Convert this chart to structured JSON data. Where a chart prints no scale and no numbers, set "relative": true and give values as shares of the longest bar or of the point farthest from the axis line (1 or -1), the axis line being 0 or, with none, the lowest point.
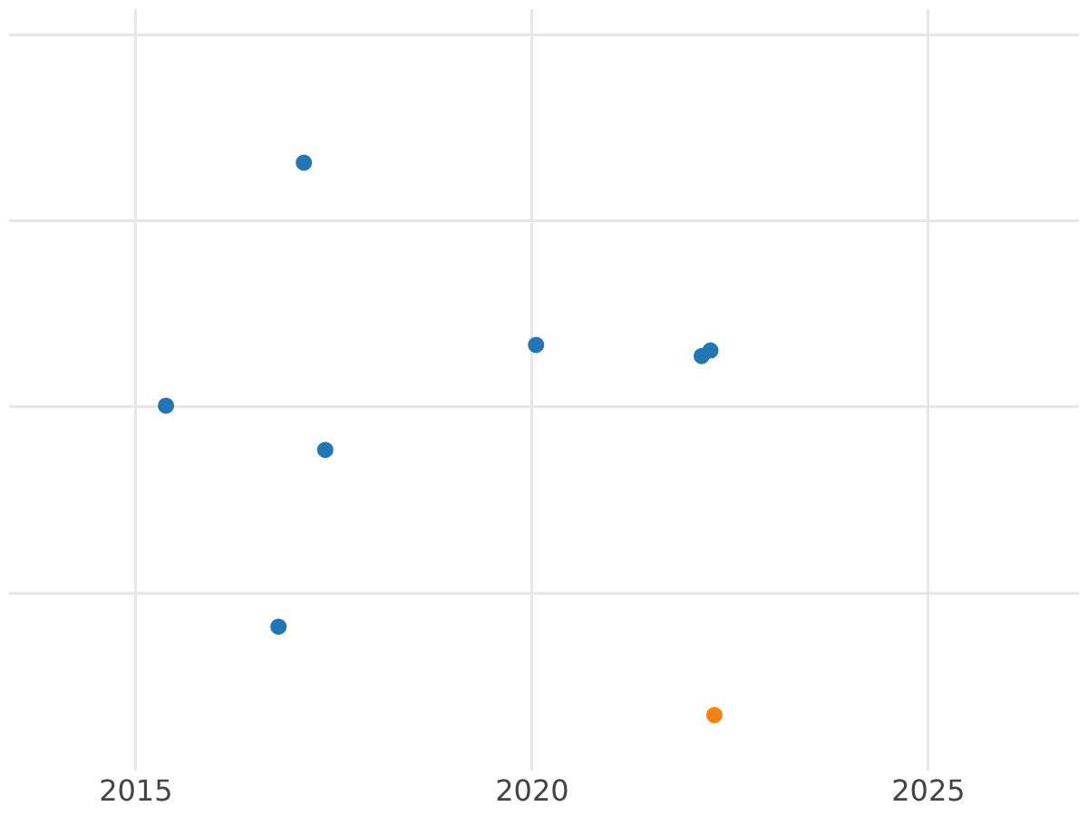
{
  "chart_data": {
    "type": "scatter",
    "relative": true,
    "xlim": [
      2013.4,
      2026.9
    ],
    "xticks": [
      2015,
      2020,
      2025
    ],
    "grid": true,
    "legend": false,
    "marker": "circle",
    "series": [
      {
        "color": "#1f77b4",
        "x": [
          2017.12,
          2015.38,
          2017.39,
          2020.05,
          2022.14,
          2022.25,
          2016.8
        ],
        "values": [
          1,
          0.56,
          0.48,
          0.67,
          0.65,
          0.66,
          0.16
        ]
      },
      {
        "color": "#ff7f0e",
        "x": [
          2022.3
        ],
        "values": [
          0
        ]
      }
    ]
  }
}
